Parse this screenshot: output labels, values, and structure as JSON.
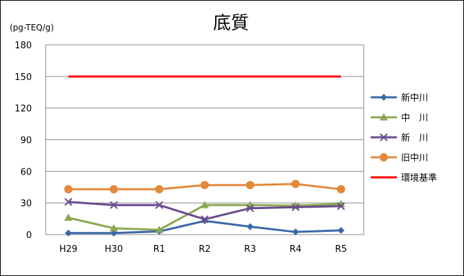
{
  "chart_data": {
    "type": "line",
    "title": "底質",
    "unit_label": "(pg-TEQ/g)",
    "categories": [
      "H29",
      "H30",
      "R1",
      "R2",
      "R3",
      "R4",
      "R5"
    ],
    "ylim": [
      0,
      180
    ],
    "yticks": [
      0,
      30,
      60,
      90,
      120,
      150,
      180
    ],
    "grid": true,
    "legend_position": "right",
    "series": [
      {
        "name": "新中川",
        "color": "#3A68A8",
        "marker": "diamond",
        "values": [
          1.5,
          1.5,
          3,
          13,
          7.5,
          2.5,
          4
        ]
      },
      {
        "name": "中　川",
        "color": "#8CA84F",
        "marker": "triangle",
        "values": [
          16,
          6,
          4.5,
          28,
          28,
          27.5,
          29
        ]
      },
      {
        "name": "新　川",
        "color": "#6A4A8E",
        "marker": "x",
        "values": [
          31,
          28,
          28,
          14.5,
          25,
          26,
          27
        ]
      },
      {
        "name": "旧中川",
        "color": "#E2893A",
        "marker": "circle",
        "values": [
          43,
          43,
          43,
          47,
          47,
          48,
          43
        ]
      },
      {
        "name": "環境基準",
        "color": "#FF0000",
        "marker": "none",
        "values": [
          150,
          150,
          150,
          150,
          150,
          150,
          150
        ]
      }
    ]
  }
}
